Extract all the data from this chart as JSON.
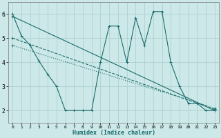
{
  "xlabel": "Humidex (Indice chaleur)",
  "background_color": "#cce8e8",
  "grid_color": "#aacccc",
  "line_color": "#1a6b6b",
  "xlim": [
    -0.5,
    23.5
  ],
  "ylim": [
    1.5,
    6.5
  ],
  "xticks": [
    0,
    1,
    2,
    3,
    4,
    5,
    6,
    7,
    8,
    9,
    10,
    11,
    12,
    13,
    14,
    15,
    16,
    17,
    18,
    19,
    20,
    21,
    22,
    23
  ],
  "yticks": [
    2,
    3,
    4,
    5,
    6
  ],
  "series_main": {
    "x": [
      0,
      1,
      2,
      3,
      4,
      5,
      6,
      7,
      8,
      9,
      10,
      11,
      12,
      13,
      14,
      15,
      16,
      17,
      18,
      19,
      20,
      21,
      22,
      23
    ],
    "y": [
      6.0,
      5.1,
      4.7,
      4.05,
      3.5,
      3.0,
      2.0,
      2.0,
      2.0,
      2.0,
      4.0,
      5.5,
      5.5,
      4.0,
      5.85,
      4.7,
      6.1,
      6.1,
      4.0,
      3.0,
      2.3,
      2.3,
      2.0,
      2.0
    ]
  },
  "series_lines": [
    {
      "x": [
        0,
        23
      ],
      "y": [
        5.9,
        2.0
      ]
    },
    {
      "x": [
        0,
        23
      ],
      "y": [
        5.0,
        2.05
      ]
    },
    {
      "x": [
        0,
        23
      ],
      "y": [
        4.7,
        2.1
      ]
    }
  ]
}
